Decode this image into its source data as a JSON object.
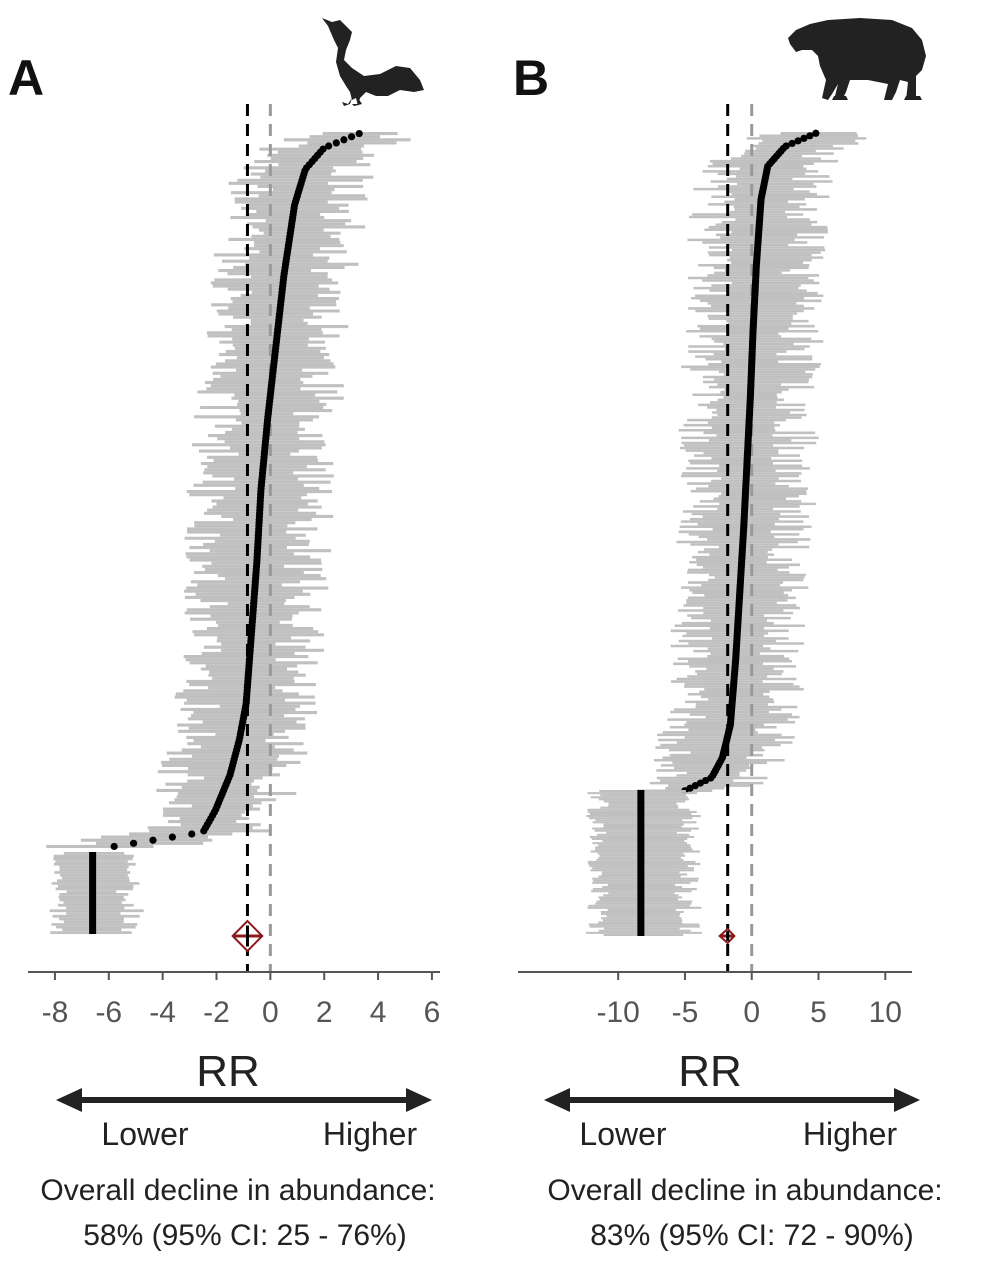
{
  "chart_data": [
    {
      "type": "scatter",
      "panel": "A",
      "icon": "curassow-bird-silhouette",
      "xlabel": "RR",
      "xlim": [
        -9,
        6.3
      ],
      "xticks": [
        -8,
        -6,
        -4,
        -2,
        0,
        2,
        4,
        6
      ],
      "xtick_labels": [
        "-8",
        "-6",
        "-4",
        "-2",
        "0",
        "2",
        "4",
        "6"
      ],
      "reference_lines": {
        "zero": 0,
        "overall_mean": -0.85
      },
      "n_studies": 260,
      "n_extirpated": 30,
      "extirpated_rr": -6.6,
      "overall_estimate": {
        "rr": -0.85,
        "ci": [
          -1.4,
          -0.3
        ]
      },
      "ordered_rr_profile": {
        "quantiles": [
          0,
          0.02,
          0.05,
          0.1,
          0.15,
          0.2,
          0.3,
          0.4,
          0.5,
          0.6,
          0.7,
          0.8,
          0.9,
          0.95,
          0.98,
          1
        ],
        "rr": [
          -5.8,
          -2.5,
          -2.05,
          -1.5,
          -1.15,
          -0.9,
          -0.7,
          -0.5,
          -0.35,
          -0.1,
          0.2,
          0.5,
          0.9,
          1.3,
          2.0,
          3.3
        ]
      },
      "arrow_labels": {
        "lower": "Lower",
        "higher": "Higher"
      },
      "summary_line1": "Overall decline in abundance:",
      "summary_line2": "58% (95% CI: 25 - 76%)"
    },
    {
      "type": "scatter",
      "panel": "B",
      "icon": "tapir-silhouette",
      "xlabel": "RR",
      "xlim": [
        -17.5,
        12
      ],
      "xticks": [
        -10,
        -5,
        0,
        5,
        10
      ],
      "xtick_labels": [
        "-10",
        "-5",
        "0",
        "5",
        "10"
      ],
      "reference_lines": {
        "zero": 0,
        "overall_mean": -1.8
      },
      "n_studies": 330,
      "n_extirpated": 70,
      "extirpated_rr": -8.3,
      "overall_estimate": {
        "rr": -1.8,
        "ci": [
          -2.4,
          -1.3
        ]
      },
      "ordered_rr_profile": {
        "quantiles": [
          0,
          0.02,
          0.05,
          0.1,
          0.2,
          0.3,
          0.4,
          0.5,
          0.6,
          0.7,
          0.8,
          0.9,
          0.95,
          0.98,
          1
        ],
        "rr": [
          -5.0,
          -3.0,
          -2.2,
          -1.6,
          -1.2,
          -0.9,
          -0.6,
          -0.35,
          -0.1,
          0.1,
          0.35,
          0.7,
          1.2,
          2.5,
          4.8
        ]
      },
      "arrow_labels": {
        "lower": "Lower",
        "higher": "Higher"
      },
      "summary_line1": "Overall decline in abundance:",
      "summary_line2": "83% (95% CI: 72 - 90%)"
    }
  ],
  "colors": {
    "ci_bar": "#c0c0c0",
    "point": "#000000",
    "mean_line": "#000000",
    "zero_line": "#999999",
    "axis": "#555555",
    "diamond_stroke": "#8b1a1a",
    "diamond_fill": "#ffffff",
    "silhouette": "#222222"
  }
}
